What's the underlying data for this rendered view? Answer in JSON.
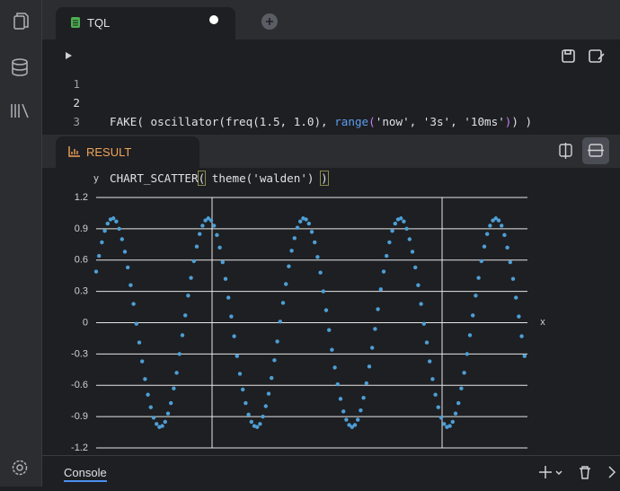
{
  "tabs": {
    "editor": "TQL",
    "result": "RESULT",
    "console": "Console"
  },
  "editor": {
    "line_numbers": [
      "1",
      "2",
      "3"
    ],
    "lines": [
      [
        "FAKE( oscillator(freq(1.5, 1.0), ",
        "range",
        "(",
        "'now', '3s', '10ms'",
        ")",
        ") )"
      ],
      [
        "CHART_SCATTER",
        "(",
        " theme('walden') ",
        ")"
      ]
    ]
  },
  "chart_data": {
    "type": "scatter",
    "x_label": "x",
    "y_label": "y",
    "series": [
      {
        "color": "#4d9fd6",
        "values": [
          0.49,
          0.64,
          0.77,
          0.88,
          0.95,
          0.99,
          1,
          0.97,
          0.9,
          0.8,
          0.68,
          0.53,
          0.36,
          0.18,
          -0.01,
          -0.19,
          -0.37,
          -0.54,
          -0.69,
          -0.81,
          -0.91,
          -0.97,
          -1,
          -0.99,
          -0.95,
          -0.87,
          -0.77,
          -0.63,
          -0.48,
          -0.3,
          -0.12,
          0.07,
          0.26,
          0.43,
          0.59,
          0.73,
          0.85,
          0.93,
          0.98,
          1,
          0.98,
          0.93,
          0.84,
          0.72,
          0.58,
          0.42,
          0.24,
          0.06,
          -0.13,
          -0.32,
          -0.49,
          -0.64,
          -0.77,
          -0.88,
          -0.95,
          -0.99,
          -1,
          -0.97,
          -0.9,
          -0.8,
          -0.68,
          -0.53,
          -0.36,
          -0.18,
          0.01,
          0.19,
          0.37,
          0.54,
          0.69,
          0.81,
          0.91,
          0.97,
          1,
          0.99,
          0.95,
          0.87,
          0.77,
          0.63,
          0.48,
          0.3,
          0.12,
          -0.07,
          -0.26,
          -0.43,
          -0.59,
          -0.73,
          -0.85,
          -0.93,
          -0.98,
          -1,
          -0.98,
          -0.93,
          -0.84,
          -0.72,
          -0.58,
          -0.42,
          -0.24,
          -0.06,
          0.13,
          0.32,
          0.49,
          0.64,
          0.77,
          0.88,
          0.95,
          0.99,
          1,
          0.97,
          0.9,
          0.8,
          0.68,
          0.53,
          0.36,
          0.18,
          -0.01,
          -0.19,
          -0.37,
          -0.54,
          -0.69,
          -0.81,
          -0.91,
          -0.97,
          -1,
          -0.99,
          -0.95,
          -0.87,
          -0.77,
          -0.63,
          -0.48,
          -0.3,
          -0.12,
          0.07,
          0.26,
          0.43,
          0.59,
          0.73,
          0.85,
          0.93,
          0.98,
          1,
          0.98,
          0.93,
          0.84,
          0.72,
          0.58,
          0.42,
          0.24,
          0.06,
          -0.13,
          -0.32
        ]
      }
    ],
    "ylim": [
      -1.2,
      1.2
    ],
    "yticks": [
      -1.2,
      -0.9,
      -0.6,
      -0.3,
      0,
      0.3,
      0.6,
      0.9,
      1.2
    ],
    "grid": true
  }
}
